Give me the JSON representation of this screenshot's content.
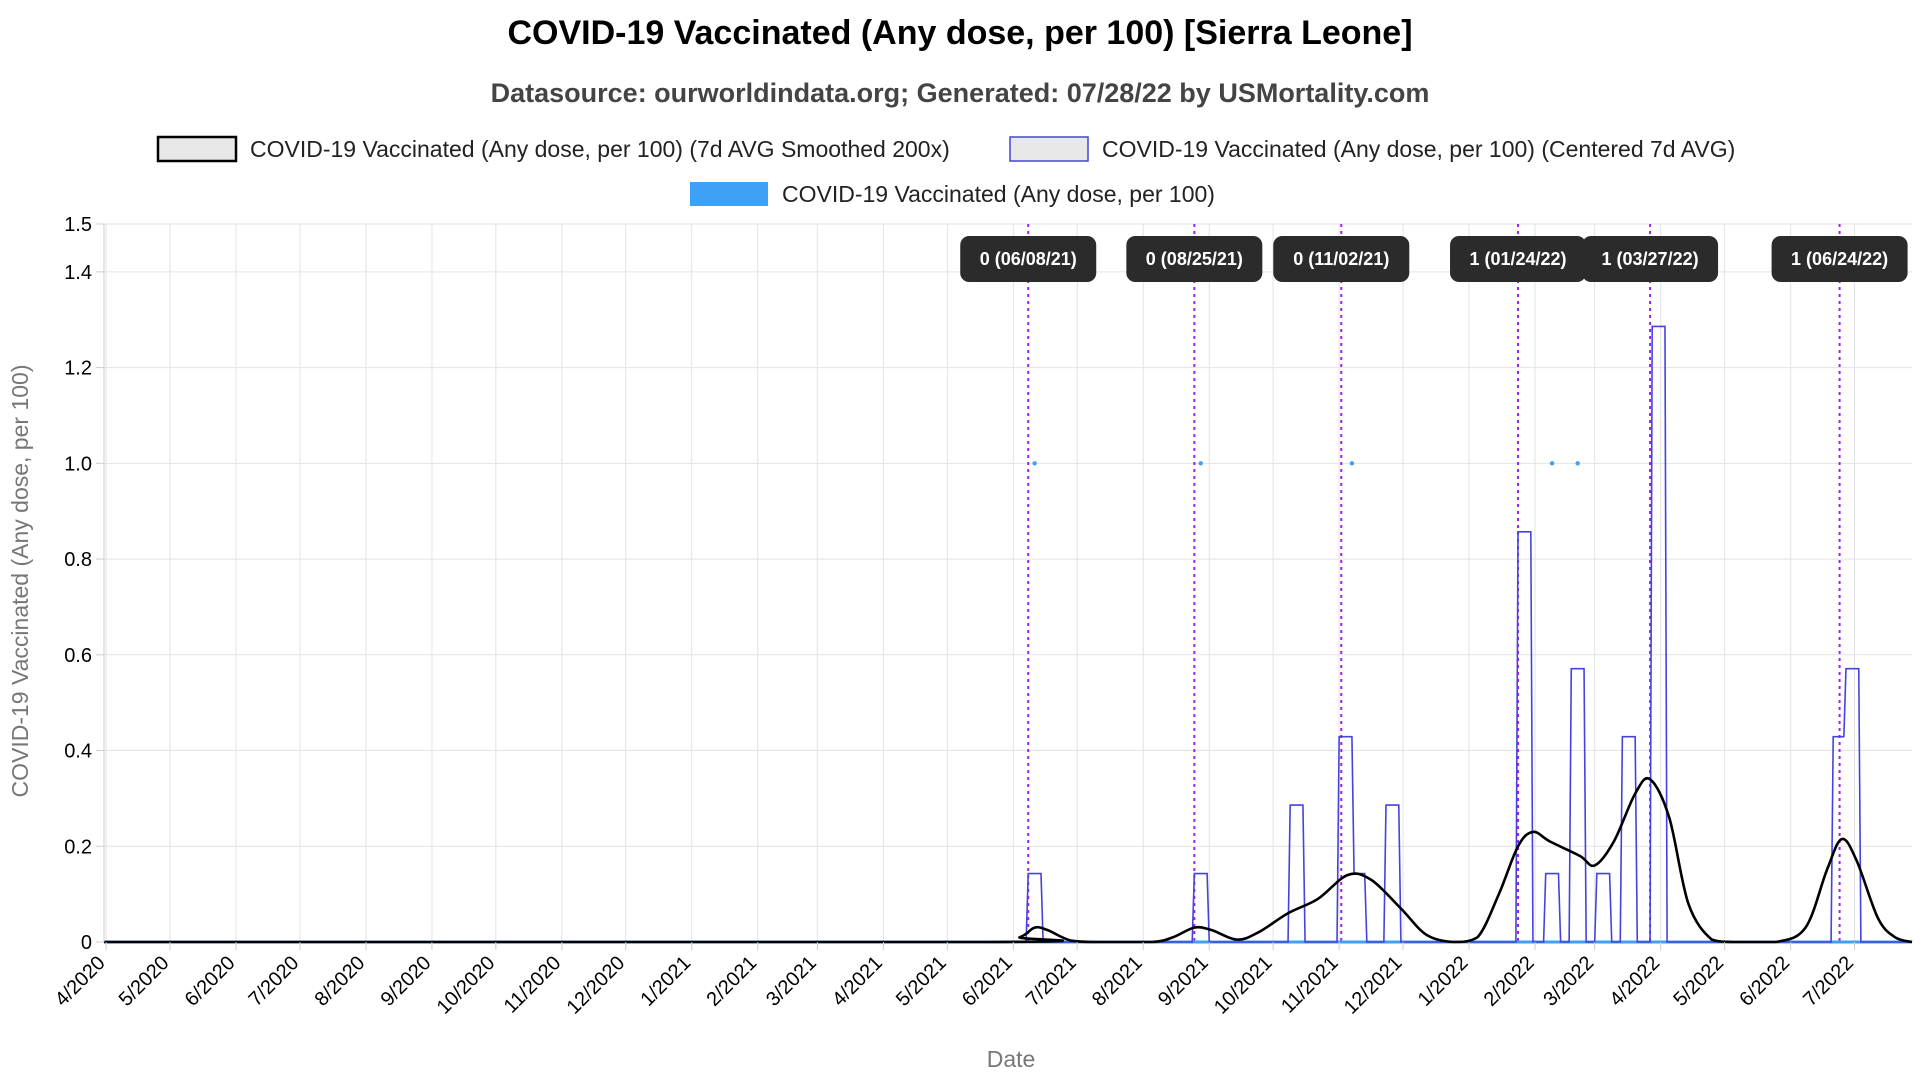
{
  "chart_data": {
    "type": "line",
    "title": "COVID-19 Vaccinated (Any dose, per 100) [Sierra Leone]",
    "subtitle": "Datasource: ourworldindata.org; Generated: 07/28/22 by USMortality.com",
    "xlabel": "Date",
    "ylabel": "COVID-19 Vaccinated (Any dose, per 100)",
    "x_range": [
      "2020-03-31",
      "2022-07-28"
    ],
    "ylim": [
      0,
      1.5
    ],
    "y_ticks": [
      0,
      0.2,
      0.4,
      0.6,
      0.8,
      1.0,
      1.2,
      1.4,
      1.5
    ],
    "y_tick_labels": [
      "0",
      "0.2",
      "0.4",
      "0.6",
      "0.8",
      "1.0",
      "1.2",
      "1.4",
      "1.5"
    ],
    "x_ticks": [
      "2020-04-01",
      "2020-05-01",
      "2020-06-01",
      "2020-07-01",
      "2020-08-01",
      "2020-09-01",
      "2020-10-01",
      "2020-11-01",
      "2020-12-01",
      "2021-01-01",
      "2021-02-01",
      "2021-03-01",
      "2021-04-01",
      "2021-05-01",
      "2021-06-01",
      "2021-07-01",
      "2021-08-01",
      "2021-09-01",
      "2021-10-01",
      "2021-11-01",
      "2021-12-01",
      "2022-01-01",
      "2022-02-01",
      "2022-03-01",
      "2022-04-01",
      "2022-05-01",
      "2022-06-01",
      "2022-07-01"
    ],
    "x_tick_labels": [
      "4/2020",
      "5/2020",
      "6/2020",
      "7/2020",
      "8/2020",
      "9/2020",
      "10/2020",
      "11/2020",
      "12/2020",
      "1/2021",
      "2/2021",
      "3/2021",
      "4/2021",
      "5/2021",
      "6/2021",
      "7/2021",
      "8/2021",
      "9/2021",
      "10/2021",
      "11/2021",
      "12/2021",
      "1/2022",
      "2/2022",
      "3/2022",
      "4/2022",
      "5/2022",
      "6/2022",
      "7/2022"
    ],
    "grid": true,
    "legend_position": "top",
    "series": [
      {
        "name": "COVID-19 Vaccinated (Any dose, per 100) (7d AVG Smoothed 200x)",
        "style": "smooth-line",
        "color": "#000000",
        "points": [
          [
            "2020-03-31",
            0
          ],
          [
            "2021-05-20",
            0
          ],
          [
            "2021-06-04",
            0.01
          ],
          [
            "2021-06-11",
            0.03
          ],
          [
            "2021-06-17",
            0.025
          ],
          [
            "2021-06-28",
            0.003
          ],
          [
            "2021-07-10",
            0
          ],
          [
            "2021-08-05",
            0
          ],
          [
            "2021-08-15",
            0.01
          ],
          [
            "2021-08-25",
            0.03
          ],
          [
            "2021-09-02",
            0.025
          ],
          [
            "2021-09-14",
            0.005
          ],
          [
            "2021-09-24",
            0.02
          ],
          [
            "2021-10-08",
            0.06
          ],
          [
            "2021-10-22",
            0.09
          ],
          [
            "2021-11-05",
            0.14
          ],
          [
            "2021-11-16",
            0.13
          ],
          [
            "2021-11-30",
            0.07
          ],
          [
            "2021-12-12",
            0.015
          ],
          [
            "2021-12-25",
            0
          ],
          [
            "2022-01-05",
            0.01
          ],
          [
            "2022-01-15",
            0.1
          ],
          [
            "2022-01-24",
            0.2
          ],
          [
            "2022-01-31",
            0.23
          ],
          [
            "2022-02-08",
            0.21
          ],
          [
            "2022-02-22",
            0.18
          ],
          [
            "2022-03-01",
            0.16
          ],
          [
            "2022-03-10",
            0.21
          ],
          [
            "2022-03-20",
            0.31
          ],
          [
            "2022-03-27",
            0.34
          ],
          [
            "2022-04-05",
            0.26
          ],
          [
            "2022-04-14",
            0.08
          ],
          [
            "2022-04-25",
            0.005
          ],
          [
            "2022-05-05",
            0
          ],
          [
            "2022-05-25",
            0
          ],
          [
            "2022-06-08",
            0.03
          ],
          [
            "2022-06-18",
            0.15
          ],
          [
            "2022-06-25",
            0.215
          ],
          [
            "2022-07-02",
            0.17
          ],
          [
            "2022-07-12",
            0.05
          ],
          [
            "2022-07-20",
            0.01
          ],
          [
            "2022-07-28",
            0
          ]
        ]
      },
      {
        "name": "COVID-19 Vaccinated (Any dose, per 100) (Centered 7d AVG)",
        "style": "step-line",
        "color": "#4444dd",
        "points": [
          [
            "2020-03-31",
            0
          ],
          [
            "2021-06-07",
            0
          ],
          [
            "2021-06-08",
            0.143
          ],
          [
            "2021-06-14",
            0.143
          ],
          [
            "2021-06-15",
            0
          ],
          [
            "2021-08-24",
            0
          ],
          [
            "2021-08-25",
            0.143
          ],
          [
            "2021-08-31",
            0.143
          ],
          [
            "2021-09-01",
            0
          ],
          [
            "2021-10-08",
            0
          ],
          [
            "2021-10-09",
            0.286
          ],
          [
            "2021-10-15",
            0.286
          ],
          [
            "2021-10-16",
            0
          ],
          [
            "2021-10-31",
            0
          ],
          [
            "2021-11-01",
            0.429
          ],
          [
            "2021-11-07",
            0.429
          ],
          [
            "2021-11-08",
            0.143
          ],
          [
            "2021-11-13",
            0.143
          ],
          [
            "2021-11-14",
            0
          ],
          [
            "2021-11-22",
            0
          ],
          [
            "2021-11-23",
            0.286
          ],
          [
            "2021-11-29",
            0.286
          ],
          [
            "2021-11-30",
            0
          ],
          [
            "2022-01-23",
            0
          ],
          [
            "2022-01-24",
            0.857
          ],
          [
            "2022-01-30",
            0.857
          ],
          [
            "2022-01-31",
            0
          ],
          [
            "2022-02-05",
            0
          ],
          [
            "2022-02-06",
            0.143
          ],
          [
            "2022-02-12",
            0.143
          ],
          [
            "2022-02-13",
            0
          ],
          [
            "2022-02-17",
            0
          ],
          [
            "2022-02-18",
            0.571
          ],
          [
            "2022-02-24",
            0.571
          ],
          [
            "2022-02-25",
            0
          ],
          [
            "2022-03-01",
            0
          ],
          [
            "2022-03-02",
            0.143
          ],
          [
            "2022-03-08",
            0.143
          ],
          [
            "2022-03-09",
            0
          ],
          [
            "2022-03-13",
            0
          ],
          [
            "2022-03-14",
            0.429
          ],
          [
            "2022-03-20",
            0.429
          ],
          [
            "2022-03-21",
            0
          ],
          [
            "2022-03-27",
            0
          ],
          [
            "2022-03-28",
            1.286
          ],
          [
            "2022-04-03",
            1.286
          ],
          [
            "2022-04-04",
            0
          ],
          [
            "2022-06-20",
            0
          ],
          [
            "2022-06-21",
            0.429
          ],
          [
            "2022-06-26",
            0.429
          ],
          [
            "2022-06-27",
            0.571
          ],
          [
            "2022-07-03",
            0.571
          ],
          [
            "2022-07-04",
            0
          ],
          [
            "2022-07-28",
            0
          ]
        ]
      },
      {
        "name": "COVID-19 Vaccinated (Any dose, per 100)",
        "style": "points",
        "color": "#3fa1f5",
        "points": [
          [
            "2021-06-11",
            1
          ],
          [
            "2021-08-28",
            1
          ],
          [
            "2021-11-07",
            1
          ],
          [
            "2022-02-09",
            1
          ],
          [
            "2022-02-21",
            1
          ]
        ]
      }
    ],
    "annotations": [
      {
        "x": "2021-06-08",
        "label": "0 (06/08/21)"
      },
      {
        "x": "2021-08-25",
        "label": "0 (08/25/21)"
      },
      {
        "x": "2021-11-02",
        "label": "0 (11/02/21)"
      },
      {
        "x": "2022-01-24",
        "label": "1 (01/24/22)"
      },
      {
        "x": "2022-03-27",
        "label": "1 (03/27/22)"
      },
      {
        "x": "2022-06-24",
        "label": "1 (06/24/22)"
      }
    ],
    "colors": {
      "grid": "#e3e3e3",
      "annotation_line": "#a020f0",
      "badge_bg": "#2b2b2b",
      "zero_line": "#3fa1f5"
    }
  }
}
